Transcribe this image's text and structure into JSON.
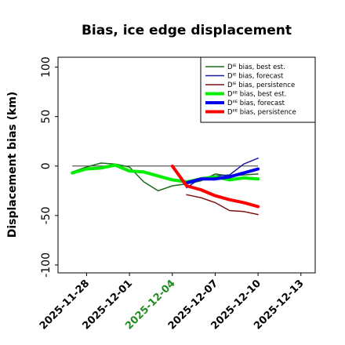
{
  "chart_data": {
    "type": "line",
    "title": "Bias, ice edge displacement",
    "ylabel": "Displacement bias (km)",
    "xlabel": "",
    "ylim": [
      -108,
      110
    ],
    "xlim": [
      "2025-11-26",
      "2025-12-14"
    ],
    "yticks": [
      "100",
      "50",
      "0",
      "-50",
      "-100"
    ],
    "ytick_values": [
      100,
      50,
      0,
      -50,
      -100
    ],
    "xticks": [
      "2025-11-28",
      "2025-12-01",
      "2025-12-04",
      "2025-12-07",
      "2025-12-10",
      "2025-12-13"
    ],
    "highlight_tick": "2025-12-04",
    "highlight_color": "#228B22",
    "zero_line": 0,
    "grid": false,
    "legend_position": "top-right",
    "series": [
      {
        "name": "Dᴵᴱ bias, best est.",
        "color": "#1a6b1a",
        "width": 1.5,
        "x": [
          "2025-11-27",
          "2025-11-28",
          "2025-11-29",
          "2025-11-30",
          "2025-12-01",
          "2025-12-02",
          "2025-12-03",
          "2025-12-04",
          "2025-12-05",
          "2025-12-06",
          "2025-12-07",
          "2025-12-08",
          "2025-12-09",
          "2025-12-10"
        ],
        "y": [
          -6,
          -1,
          3,
          2,
          -1,
          -16,
          -25,
          -20,
          -18,
          -15,
          -8,
          -10,
          -9,
          -8
        ]
      },
      {
        "name": "Dᴵᴱ bias, forecast",
        "color": "#1a1a9e",
        "width": 1.5,
        "x": [
          "2025-12-05",
          "2025-12-06",
          "2025-12-07",
          "2025-12-08",
          "2025-12-09",
          "2025-12-10"
        ],
        "y": [
          -22,
          -12,
          -10,
          -9,
          2,
          8
        ]
      },
      {
        "name": "Dᴵᴱ bias, persistence",
        "color": "#7a1010",
        "width": 1.5,
        "x": [
          "2025-12-05",
          "2025-12-06",
          "2025-12-07",
          "2025-12-08",
          "2025-12-09",
          "2025-12-10"
        ],
        "y": [
          -29,
          -32,
          -37,
          -45,
          -46,
          -49
        ]
      },
      {
        "name": "Dᴵᴵᴱ bias, best est.",
        "color": "#00ee00",
        "width": 4,
        "x": [
          "2025-11-27",
          "2025-11-28",
          "2025-11-29",
          "2025-11-30",
          "2025-12-01",
          "2025-12-02",
          "2025-12-03",
          "2025-12-04",
          "2025-12-05",
          "2025-12-06",
          "2025-12-07",
          "2025-12-08",
          "2025-12-09",
          "2025-12-10"
        ],
        "y": [
          -7,
          -3,
          -2,
          1,
          -5,
          -6,
          -10,
          -14,
          -16,
          -13,
          -11,
          -14,
          -12,
          -13
        ]
      },
      {
        "name": "Dᴵᴵᴱ bias, forecast",
        "color": "#0000ee",
        "width": 4,
        "x": [
          "2025-12-05",
          "2025-12-06",
          "2025-12-07",
          "2025-12-08",
          "2025-12-09",
          "2025-12-10"
        ],
        "y": [
          -17,
          -13,
          -13,
          -11,
          -7,
          -3
        ]
      },
      {
        "name": "Dᴵᴵᴱ bias, persistence",
        "color": "#ff0000",
        "width": 4,
        "x": [
          "2025-12-04",
          "2025-12-05",
          "2025-12-06",
          "2025-12-07",
          "2025-12-08",
          "2025-12-09",
          "2025-12-10"
        ],
        "y": [
          0,
          -20,
          -24,
          -30,
          -34,
          -37,
          -41
        ]
      }
    ]
  }
}
